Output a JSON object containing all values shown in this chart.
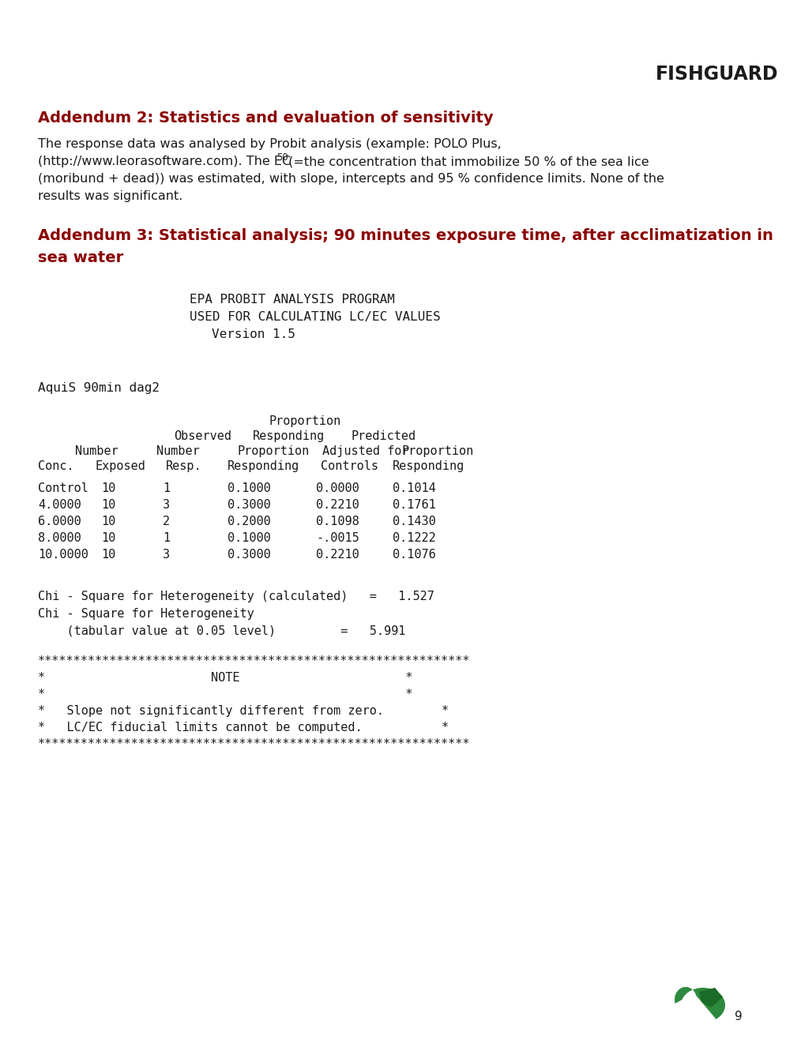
{
  "bg_color": "#ffffff",
  "dark_red": "#8B0000",
  "black": "#1a1a1a",
  "page_number": "9",
  "logo_text": "FISHGUARD",
  "addendum2_title": "Addendum 2: Statistics and evaluation of sensitivity",
  "addendum3_title_line1": "Addendum 3: Statistical analysis; 90 minutes exposure time, after acclimatization in",
  "addendum3_title_line2": "sea water",
  "table_data": [
    [
      "Control",
      "10",
      "1",
      "0.1000",
      "0.0000",
      "0.1014"
    ],
    [
      "4.0000",
      "10",
      "3",
      "0.3000",
      "0.2210",
      "0.1761"
    ],
    [
      "6.0000",
      "10",
      "2",
      "0.2000",
      "0.1098",
      "0.1430"
    ],
    [
      "8.0000",
      "10",
      "1",
      "0.1000",
      "-.0015",
      "0.1222"
    ],
    [
      "10.0000",
      "10",
      "3",
      "0.3000",
      "0.2210",
      "0.1076"
    ]
  ],
  "chi_line1": "Chi - Square for Heterogeneity (calculated)   =   1.527",
  "chi_line2": "Chi - Square for Heterogeneity",
  "chi_line3": "    (tabular value at 0.05 level)         =   5.991",
  "stars_line": "************************************************************",
  "note_lines": [
    "*                       NOTE                       *",
    "*                                                  *",
    "*   Slope not significantly different from zero.        *",
    "*   LC/EC fiducial limits cannot be computed.           *",
    "************************************************************"
  ]
}
